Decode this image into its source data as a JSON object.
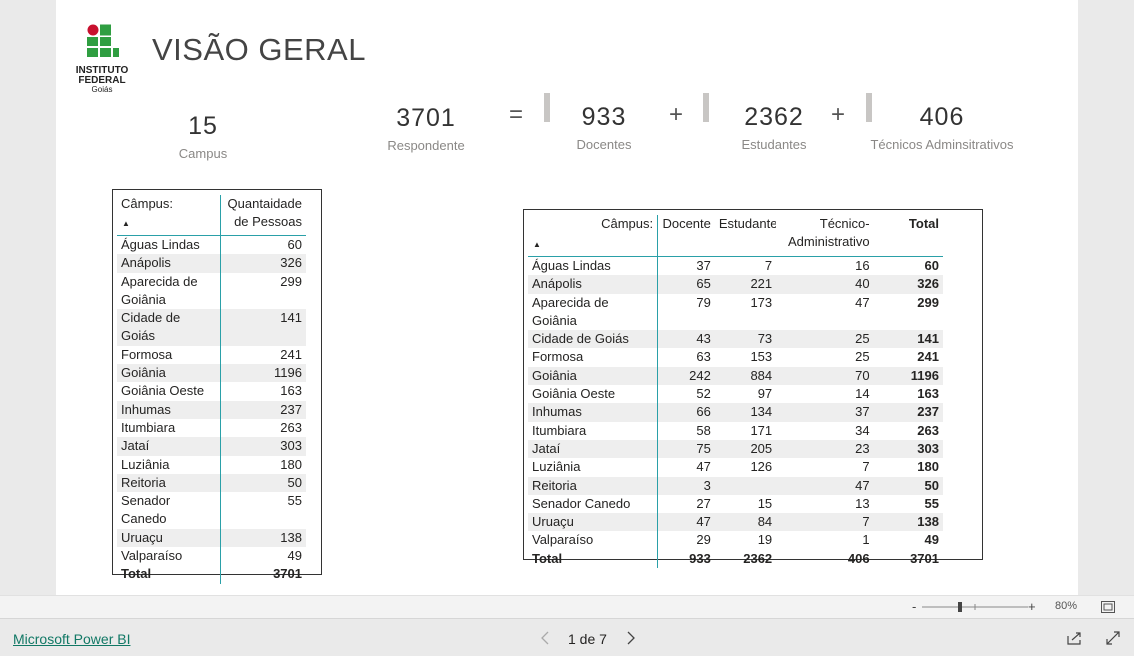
{
  "header": {
    "title": "VISÃO GERAL",
    "logo": [
      "INSTITUTO",
      "FEDERAL",
      "Goiás"
    ]
  },
  "kpis": [
    {
      "value": "15",
      "label": "Campus"
    },
    {
      "value": "3701",
      "label": "Respondente"
    },
    {
      "value": "933",
      "label": "Docentes"
    },
    {
      "value": "2362",
      "label": "Estudantes"
    },
    {
      "value": "406",
      "label": "Técnicos Adminsitrativos"
    }
  ],
  "operators": [
    "=",
    "+",
    "+"
  ],
  "table1": {
    "columns": [
      "Câmpus:",
      "Quantaidade de Pessoas"
    ],
    "rows": [
      [
        "Águas Lindas",
        60
      ],
      [
        "Anápolis",
        326
      ],
      [
        "Aparecida de Goiânia",
        299
      ],
      [
        "Cidade de Goiás",
        141
      ],
      [
        "Formosa",
        241
      ],
      [
        "Goiânia",
        1196
      ],
      [
        "Goiânia Oeste",
        163
      ],
      [
        "Inhumas",
        237
      ],
      [
        "Itumbiara",
        263
      ],
      [
        "Jataí",
        303
      ],
      [
        "Luziânia",
        180
      ],
      [
        "Reitoria",
        50
      ],
      [
        "Senador Canedo",
        55
      ],
      [
        "Uruaçu",
        138
      ],
      [
        "Valparaíso",
        49
      ]
    ],
    "total": [
      "Total",
      3701
    ]
  },
  "table2": {
    "columns": [
      "Câmpus:",
      "Docente",
      "Estudante",
      "Técnico-Administrativo",
      "Total"
    ],
    "rows": [
      [
        "Águas Lindas",
        37,
        7,
        16,
        60
      ],
      [
        "Anápolis",
        65,
        221,
        40,
        326
      ],
      [
        "Aparecida de Goiânia",
        79,
        173,
        47,
        299
      ],
      [
        "Cidade de Goiás",
        43,
        73,
        25,
        141
      ],
      [
        "Formosa",
        63,
        153,
        25,
        241
      ],
      [
        "Goiânia",
        242,
        884,
        70,
        1196
      ],
      [
        "Goiânia Oeste",
        52,
        97,
        14,
        163
      ],
      [
        "Inhumas",
        66,
        134,
        37,
        237
      ],
      [
        "Itumbiara",
        58,
        171,
        34,
        263
      ],
      [
        "Jataí",
        75,
        205,
        23,
        303
      ],
      [
        "Luziânia",
        47,
        126,
        7,
        180
      ],
      [
        "Reitoria",
        3,
        null,
        47,
        50
      ],
      [
        "Senador Canedo",
        27,
        15,
        13,
        55
      ],
      [
        "Uruaçu",
        47,
        84,
        7,
        138
      ],
      [
        "Valparaíso",
        29,
        19,
        1,
        49
      ]
    ],
    "total": [
      "Total",
      933,
      2362,
      406,
      3701
    ]
  },
  "zoom": {
    "minus": "-",
    "plus": "+",
    "level": "80%"
  },
  "footer": {
    "link": "Microsoft Power BI",
    "page": "1 de 7"
  }
}
